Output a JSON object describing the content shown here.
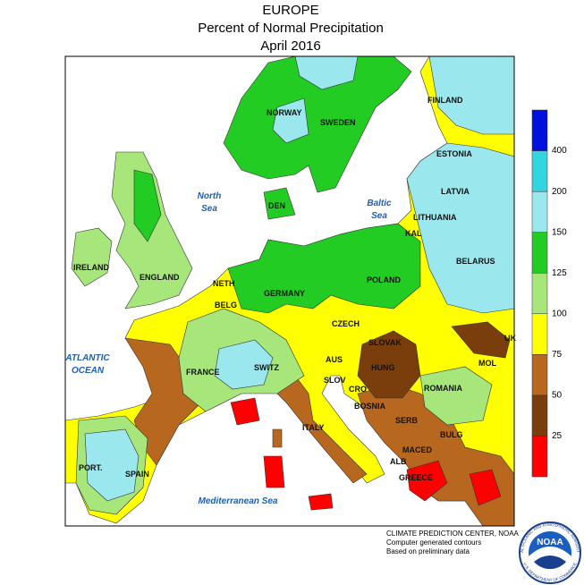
{
  "header": {
    "title": "EUROPE",
    "subtitle": "Percent of Normal Precipitation",
    "date": "April 2016"
  },
  "legend": {
    "colors": [
      "#ff0000",
      "#7a3d0c",
      "#b8681e",
      "#ffff00",
      "#a6e67a",
      "#22cc22",
      "#9ae8ee",
      "#33d6e0",
      "#0011dd"
    ],
    "ticks": [
      25,
      50,
      75,
      100,
      125,
      150,
      200,
      400
    ]
  },
  "country_labels": [
    "NORWAY",
    "SWEDEN",
    "FINLAND",
    "ESTONIA",
    "LATVIA",
    "LITHUANIA",
    "KAL",
    "BELARUS",
    "DEN",
    "IRELAND",
    "ENGLAND",
    "NETH",
    "BELG",
    "GERMANY",
    "POLAND",
    "CZECH",
    "SLOVAK",
    "UK",
    "MOL",
    "AUS",
    "HUNG",
    "SWITZ",
    "FRANCE",
    "SLOV",
    "CRO",
    "ROMANIA",
    "BOSNIA",
    "SERB",
    "BULG",
    "MACED",
    "ALB",
    "GREECE",
    "ITALY",
    "PORT.",
    "SPAIN"
  ],
  "sea_labels": [
    [
      "North",
      "Sea"
    ],
    [
      "Baltic",
      "Sea"
    ],
    [
      "ATLANTIC",
      "OCEAN"
    ],
    [
      "Mediterranean Sea"
    ]
  ],
  "credits": [
    "CLIMATE PREDICTION CENTER, NOAA",
    "Computer generated contours",
    "Based on preliminary data"
  ],
  "logo": {
    "text": "NOAA",
    "ring_top": "NATIONAL OCEANIC AND ATMOSPHERIC ADMINISTRATION",
    "ring_bottom": "U.S. DEPARTMENT OF COMMERCE"
  }
}
